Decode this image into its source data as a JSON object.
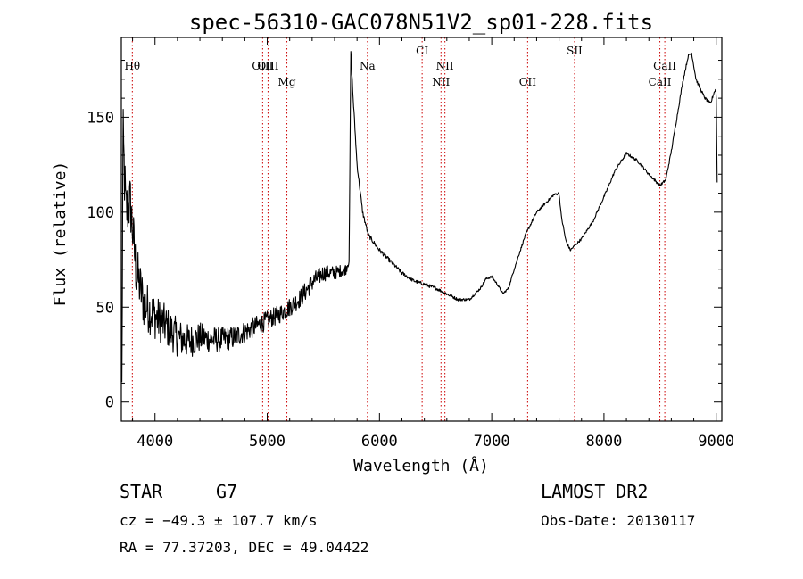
{
  "chart_data": {
    "type": "line",
    "title": "spec-56310-GAC078N51V2_sp01-228.fits",
    "xlabel": "Wavelength (Å)",
    "ylabel": "Flux (relative)",
    "xlim": [
      3700,
      9050
    ],
    "ylim": [
      -10,
      192
    ],
    "xticks": [
      4000,
      5000,
      6000,
      7000,
      8000,
      9000
    ],
    "yticks": [
      0,
      50,
      100,
      150
    ],
    "grid": false,
    "line_color": "#000000",
    "marker_color": "#cc0000",
    "lines": [
      {
        "label": "Hθ",
        "x": 3798,
        "row": 0
      },
      {
        "label": "OIII",
        "x": 4959,
        "row": 0
      },
      {
        "label": "OIII",
        "x": 5007,
        "row": 0
      },
      {
        "label": "Mg",
        "x": 5175,
        "row": 1
      },
      {
        "label": "Na",
        "x": 5893,
        "row": 0
      },
      {
        "label": "CI",
        "x": 6380,
        "row": -1
      },
      {
        "label": "NII",
        "x": 6548,
        "row": 1
      },
      {
        "label": "NII",
        "x": 6583,
        "row": 0
      },
      {
        "label": "OII",
        "x": 7320,
        "row": 1
      },
      {
        "label": "SII",
        "x": 7738,
        "row": -1
      },
      {
        "label": "CaII",
        "x": 8498,
        "row": 1
      },
      {
        "label": "CaII",
        "x": 8542,
        "row": 0
      }
    ],
    "anchors": [
      [
        3705,
        5
      ],
      [
        3715,
        140
      ],
      [
        3740,
        100
      ],
      [
        3780,
        105
      ],
      [
        3830,
        70
      ],
      [
        3900,
        52
      ],
      [
        4000,
        45
      ],
      [
        4100,
        40
      ],
      [
        4200,
        34
      ],
      [
        4300,
        32
      ],
      [
        4400,
        34
      ],
      [
        4500,
        33
      ],
      [
        4600,
        33
      ],
      [
        4700,
        34
      ],
      [
        4800,
        37
      ],
      [
        4900,
        40
      ],
      [
        5000,
        43
      ],
      [
        5100,
        46
      ],
      [
        5200,
        50
      ],
      [
        5300,
        55
      ],
      [
        5400,
        63
      ],
      [
        5500,
        68
      ],
      [
        5600,
        68
      ],
      [
        5700,
        70
      ],
      [
        5730,
        75
      ],
      [
        5745,
        185
      ],
      [
        5760,
        165
      ],
      [
        5800,
        125
      ],
      [
        5850,
        100
      ],
      [
        5900,
        88
      ],
      [
        6000,
        80
      ],
      [
        6100,
        74
      ],
      [
        6200,
        68
      ],
      [
        6300,
        64
      ],
      [
        6400,
        62
      ],
      [
        6500,
        60
      ],
      [
        6600,
        57
      ],
      [
        6700,
        54
      ],
      [
        6800,
        54
      ],
      [
        6900,
        60
      ],
      [
        6950,
        65
      ],
      [
        7000,
        66
      ],
      [
        7050,
        62
      ],
      [
        7100,
        57
      ],
      [
        7150,
        60
      ],
      [
        7200,
        70
      ],
      [
        7300,
        88
      ],
      [
        7400,
        100
      ],
      [
        7500,
        106
      ],
      [
        7550,
        109
      ],
      [
        7600,
        110
      ],
      [
        7620,
        98
      ],
      [
        7660,
        85
      ],
      [
        7700,
        80
      ],
      [
        7800,
        86
      ],
      [
        7900,
        95
      ],
      [
        8000,
        108
      ],
      [
        8100,
        122
      ],
      [
        8200,
        131
      ],
      [
        8300,
        127
      ],
      [
        8400,
        120
      ],
      [
        8500,
        114
      ],
      [
        8550,
        117
      ],
      [
        8600,
        132
      ],
      [
        8650,
        150
      ],
      [
        8700,
        168
      ],
      [
        8750,
        182
      ],
      [
        8780,
        184
      ],
      [
        8820,
        170
      ],
      [
        8850,
        166
      ],
      [
        8900,
        160
      ],
      [
        8950,
        157
      ],
      [
        8980,
        163
      ],
      [
        9000,
        165
      ],
      [
        9010,
        110
      ]
    ],
    "noise": [
      [
        3700,
        18
      ],
      [
        3800,
        15
      ],
      [
        4000,
        12
      ],
      [
        4500,
        7
      ],
      [
        5000,
        5
      ],
      [
        5400,
        5
      ],
      [
        5700,
        3
      ],
      [
        5800,
        1.2
      ],
      [
        7000,
        0.6
      ],
      [
        9000,
        0.8
      ]
    ]
  },
  "footer": {
    "object_type": "STAR",
    "subclass": "G7",
    "survey": "LAMOST DR2",
    "redshift": "cz = −49.3 ± 107.7 km/s",
    "obs_date": "Obs-Date: 20130117",
    "coords": "RA =  77.37203, DEC =  49.04422"
  }
}
